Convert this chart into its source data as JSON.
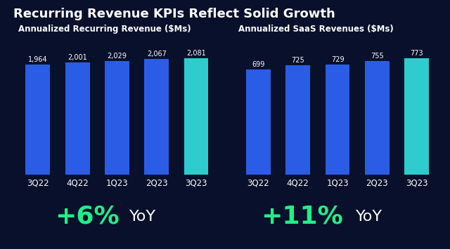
{
  "title": "Recurring Revenue KPIs Reflect Solid Growth",
  "background_color": "#08102b",
  "title_color": "#ffffff",
  "title_fontsize": 13,
  "left_chart": {
    "subtitle": "Annualized Recurring Revenue ($Ms)",
    "categories": [
      "3Q22",
      "4Q22",
      "1Q23",
      "2Q23",
      "3Q23"
    ],
    "values": [
      1964,
      2001,
      2029,
      2067,
      2081
    ],
    "labels": [
      "1,964",
      "2,001",
      "2,029",
      "2,067",
      "2,081"
    ],
    "bar_colors": [
      "#2b5ce6",
      "#2b5ce6",
      "#2b5ce6",
      "#2b5ce6",
      "#2ecccc"
    ],
    "yoy_percent": "+6%",
    "yoy_text": "YoY",
    "yoy_color": "#22ee88"
  },
  "right_chart": {
    "subtitle": "Annualized SaaS Revenues ($Ms)",
    "categories": [
      "3Q22",
      "4Q22",
      "1Q23",
      "2Q23",
      "3Q23"
    ],
    "values": [
      699,
      725,
      729,
      755,
      773
    ],
    "labels": [
      "699",
      "725",
      "729",
      "755",
      "773"
    ],
    "bar_colors": [
      "#2b5ce6",
      "#2b5ce6",
      "#2b5ce6",
      "#2b5ce6",
      "#2ecccc"
    ],
    "yoy_percent": "+11%",
    "yoy_text": "YoY",
    "yoy_color": "#22ee88"
  }
}
